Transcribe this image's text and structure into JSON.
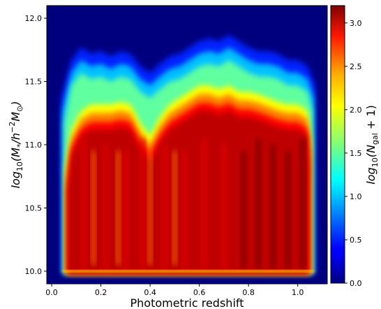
{
  "chart_data": {
    "type": "heatmap",
    "title": "",
    "xlabel": "Photometric redshift",
    "ylabel_parts": {
      "log": "log",
      "sub": "10",
      "open": "(M",
      "star": "*",
      "slash": "/h",
      "minus2": "−2",
      "msun": "M",
      "sun": "⊙",
      "close": ")"
    },
    "colorbar_label_parts": {
      "log": "log",
      "sub": "10",
      "open": "(N",
      "gal": "gal",
      "rest": " + 1)"
    },
    "xlim": [
      -0.02,
      1.12
    ],
    "ylim": [
      9.9,
      12.1
    ],
    "clim": [
      0.0,
      3.2
    ],
    "colormap": "jet",
    "x_ticks": [
      0.0,
      0.2,
      0.4,
      0.6,
      0.8,
      1.0
    ],
    "x_tick_labels": [
      "0.0",
      "0.2",
      "0.4",
      "0.6",
      "0.8",
      "1.0"
    ],
    "y_ticks": [
      10.0,
      10.5,
      11.0,
      11.5,
      12.0
    ],
    "y_tick_labels": [
      "10.0",
      "10.5",
      "11.0",
      "11.5",
      "12.0"
    ],
    "colorbar_ticks": [
      0.0,
      0.5,
      1.0,
      1.5,
      2.0,
      2.5,
      3.0
    ],
    "colorbar_tick_labels": [
      "0.0",
      "0.5",
      "1.0",
      "1.5",
      "2.0",
      "2.5",
      "3.0"
    ],
    "x_extent": [
      0.05,
      1.06
    ],
    "upper_envelope": {
      "x": [
        0.05,
        0.08,
        0.12,
        0.16,
        0.2,
        0.24,
        0.28,
        0.32,
        0.36,
        0.4,
        0.44,
        0.48,
        0.52,
        0.56,
        0.6,
        0.64,
        0.68,
        0.72,
        0.76,
        0.8,
        0.84,
        0.88,
        0.92,
        0.96,
        1.0,
        1.04,
        1.06
      ],
      "y": [
        11.25,
        11.55,
        11.65,
        11.6,
        11.62,
        11.58,
        11.62,
        11.6,
        11.5,
        11.45,
        11.52,
        11.58,
        11.6,
        11.65,
        11.7,
        11.72,
        11.7,
        11.75,
        11.7,
        11.65,
        11.62,
        11.62,
        11.6,
        11.55,
        11.55,
        11.5,
        11.35
      ]
    },
    "core_envelope": {
      "x": [
        0.05,
        0.08,
        0.12,
        0.16,
        0.2,
        0.24,
        0.28,
        0.32,
        0.36,
        0.4,
        0.44,
        0.48,
        0.52,
        0.56,
        0.6,
        0.64,
        0.68,
        0.72,
        0.76,
        0.8,
        0.84,
        0.88,
        0.92,
        0.96,
        1.0,
        1.04,
        1.06
      ],
      "y": [
        10.7,
        11.0,
        11.15,
        11.2,
        11.2,
        11.2,
        11.22,
        11.2,
        11.05,
        10.95,
        11.1,
        11.2,
        11.25,
        11.3,
        11.35,
        11.35,
        11.32,
        11.35,
        11.3,
        11.3,
        11.28,
        11.25,
        11.22,
        11.2,
        11.2,
        11.15,
        10.9
      ]
    },
    "peak_value": 3.2,
    "floor_line_y": 10.0
  }
}
